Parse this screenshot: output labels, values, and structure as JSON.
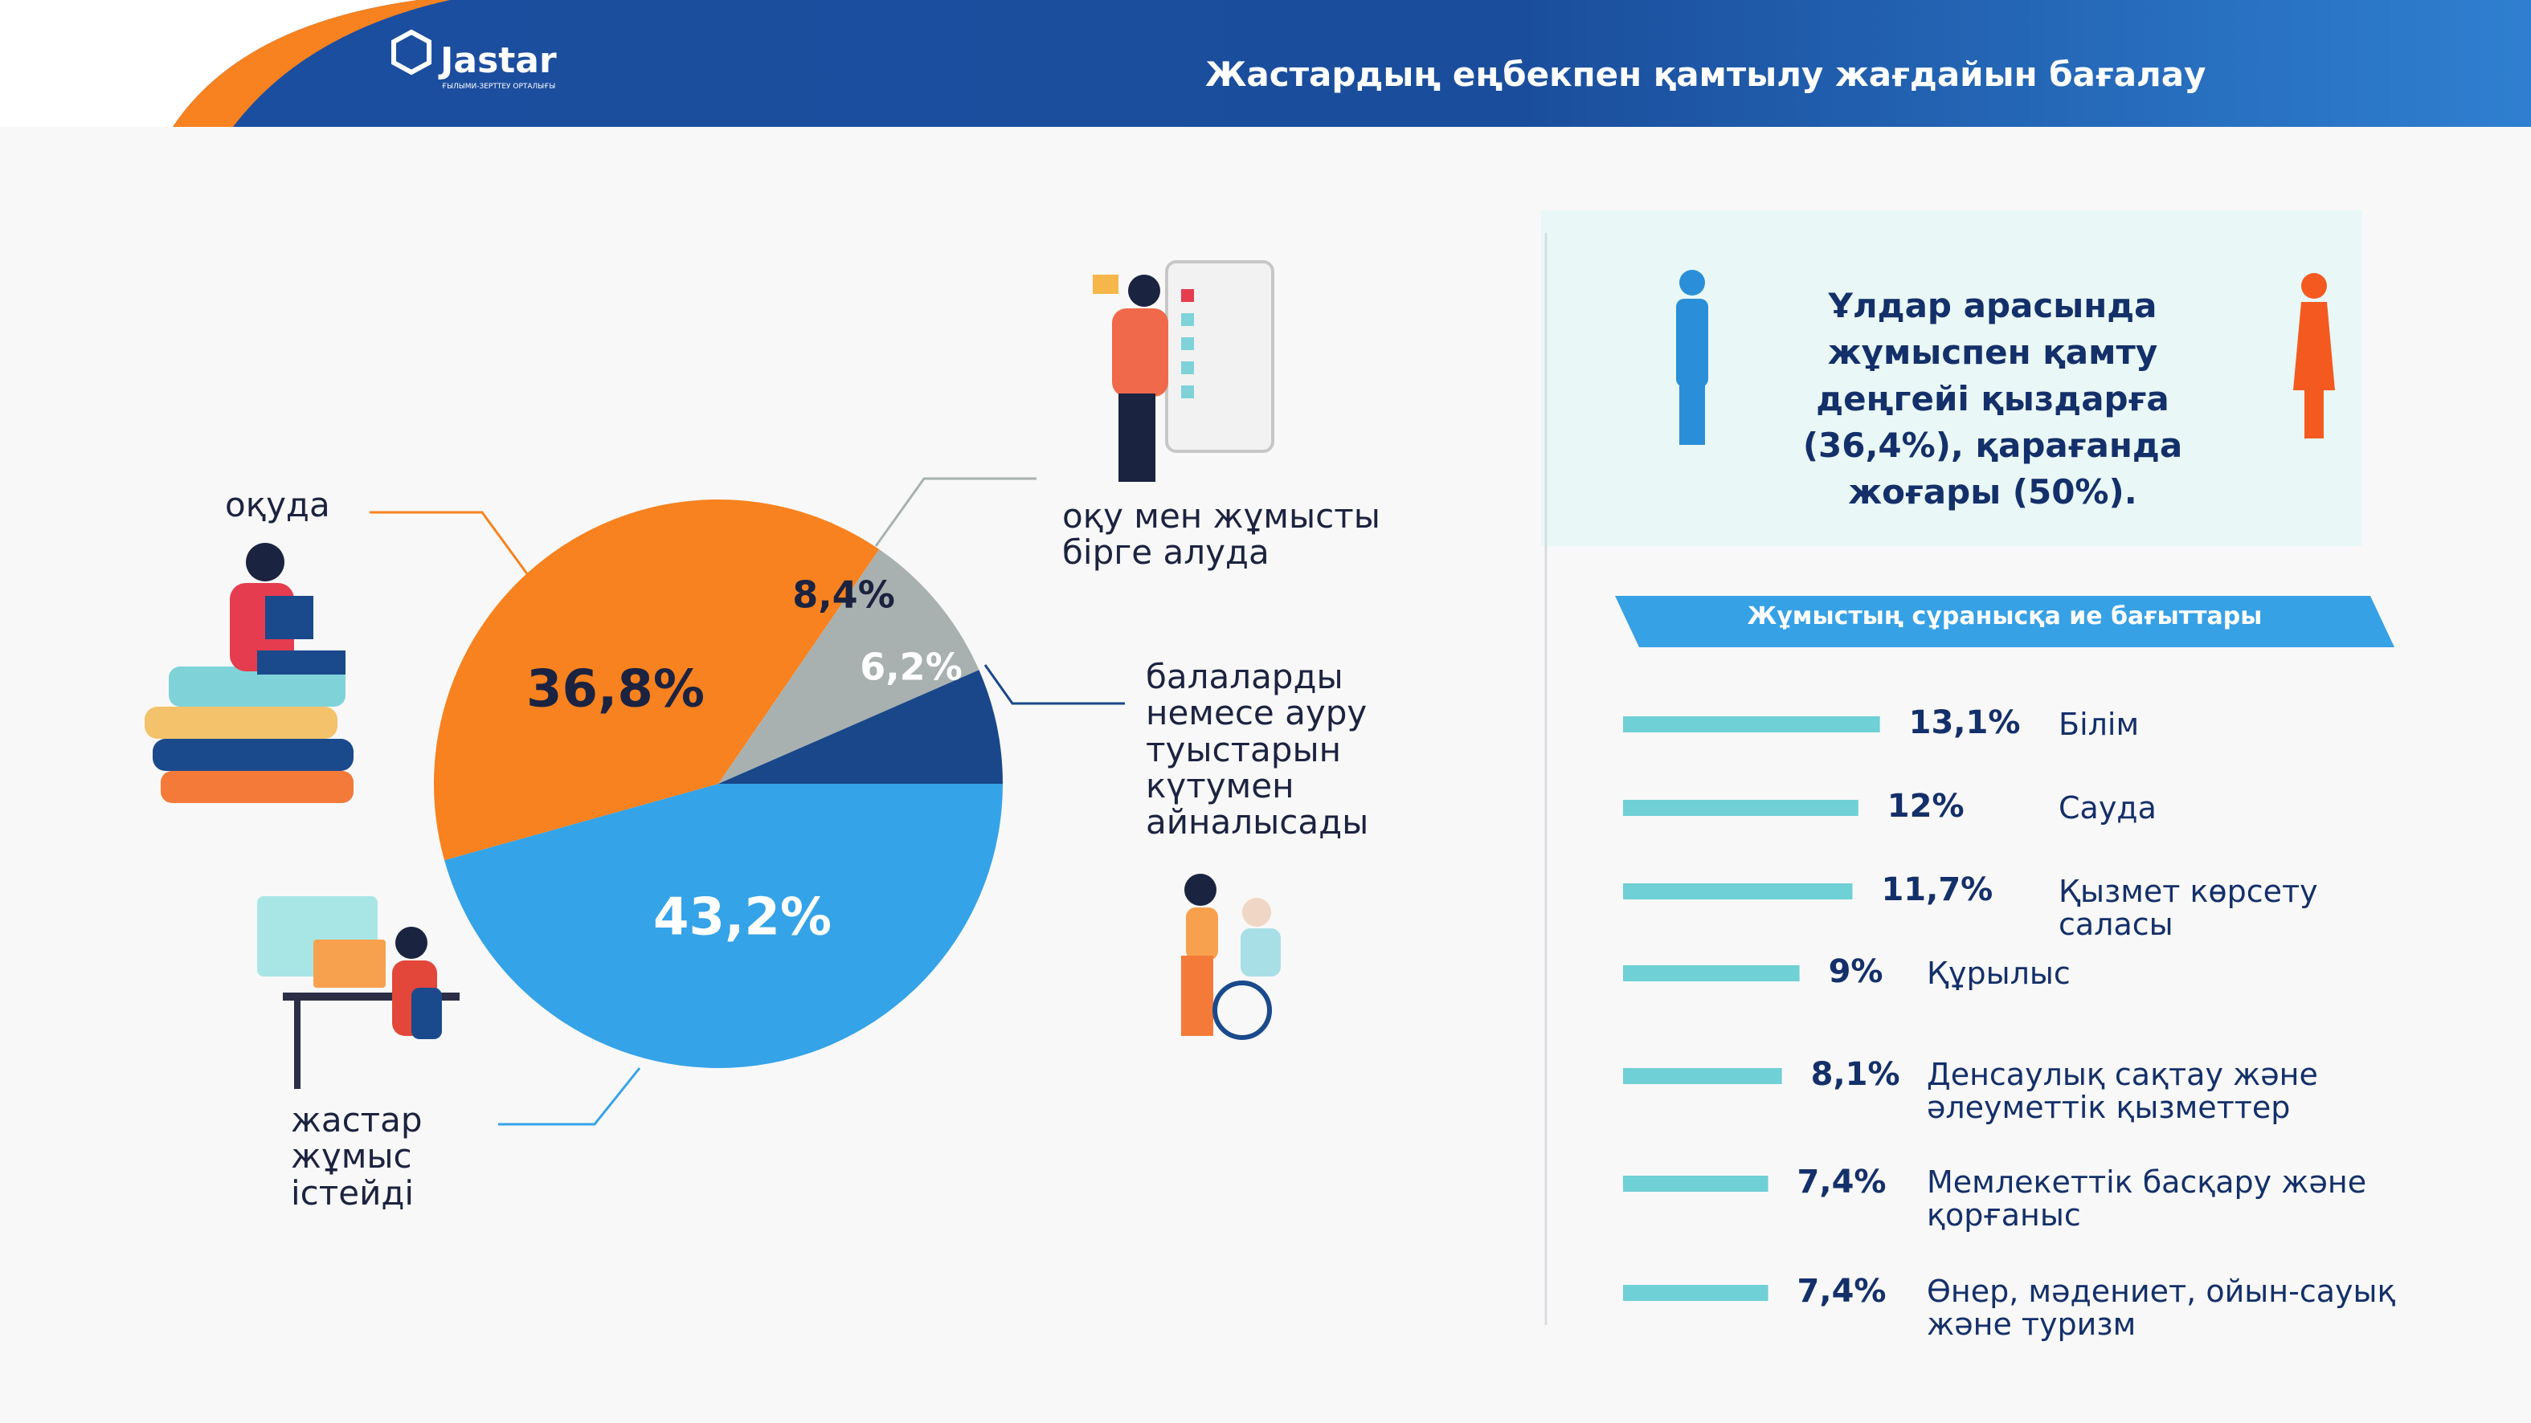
{
  "header": {
    "logo": "Jastar",
    "logo_subtitle": "ҒЫЛЫМИ-ЗЕРТТЕУ ОРТАЛЫҒЫ",
    "title": "Жастардың еңбекпен қамтылу жағдайын бағалау"
  },
  "callout": {
    "text": "Ұлдар арасында жұмыспен қамту деңгейі қыздарға (36,4%), қарағанда жоғары (50%)."
  },
  "chart_data": [
    {
      "type": "pie",
      "categories": [
        "жастар жұмыс істейді",
        "оқуда",
        "оқу мен жұмысты бірге алуда",
        "балаларды немесе ауру туыстарын күтумен айналысады"
      ],
      "values": [
        43.2,
        36.8,
        8.4,
        6.2
      ],
      "value_labels": [
        "43,2%",
        "36,8%",
        "8,4%",
        "6,2%"
      ],
      "colors": [
        "#35a3e8",
        "#f7821f",
        "#a8b1b0",
        "#19478a"
      ]
    },
    {
      "type": "hbar",
      "title": "Жұмыстың сұранысқа ие бағыттары",
      "categories": [
        "Білім",
        "Сауда",
        "Қызмет көрсету саласы",
        "Құрылыс",
        "Денсаулық сақтау және әлеуметтік қызметтер",
        "Мемлекеттік басқару және қорғаныс",
        "Өнер, мәдениет, ойын-сауық және туризм"
      ],
      "values": [
        13.1,
        12,
        11.7,
        9,
        8.1,
        7.4,
        7.4
      ],
      "value_labels": [
        "13,1%",
        "12%",
        "11,7%",
        "9%",
        "8,1%",
        "7,4%",
        "7,4%"
      ],
      "color": "#6fd0d6"
    }
  ]
}
